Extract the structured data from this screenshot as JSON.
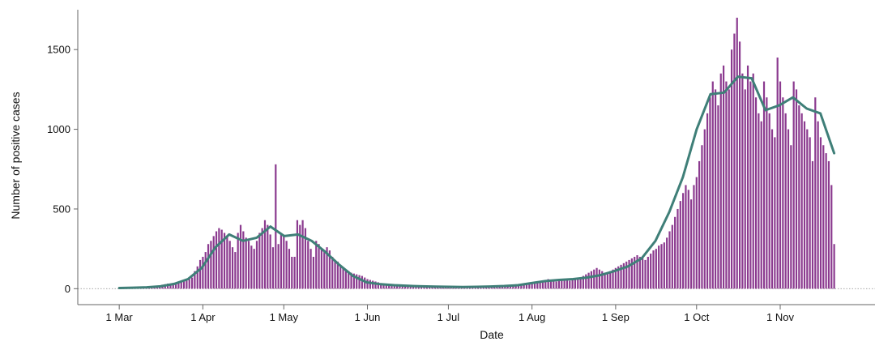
{
  "chart_data": {
    "type": "bar",
    "title": "",
    "xlabel": "Date",
    "ylabel": "Number of positive cases",
    "ylim": [
      -100,
      1750
    ],
    "grid": false,
    "legend": "none",
    "baseline": "dotted line at 0",
    "colors": {
      "bars": "#8b3a8f",
      "trend": "#3f7f78",
      "axis": "#666666",
      "text": "#111111"
    },
    "x_ticks": [
      "1 Mar",
      "1 Apr",
      "1 May",
      "1 Jun",
      "1 Jul",
      "1 Aug",
      "1 Sep",
      "1 Oct",
      "1 Nov"
    ],
    "y_ticks": [
      "0",
      "500",
      "1000",
      "1500"
    ],
    "date_range": [
      "2020-03-01",
      "2020-11-23"
    ],
    "series": [
      {
        "type": "bar",
        "values": [
          2,
          2,
          2,
          3,
          3,
          3,
          4,
          4,
          5,
          5,
          6,
          8,
          10,
          12,
          15,
          20,
          25,
          28,
          32,
          30,
          35,
          38,
          36,
          40,
          45,
          50,
          60,
          70,
          110,
          140,
          180,
          200,
          230,
          280,
          300,
          330,
          360,
          380,
          370,
          350,
          330,
          300,
          260,
          230,
          350,
          400,
          360,
          320,
          300,
          270,
          250,
          300,
          350,
          380,
          430,
          400,
          340,
          260,
          780,
          280,
          350,
          330,
          300,
          250,
          200,
          200,
          430,
          400,
          430,
          380,
          300,
          250,
          200,
          300,
          280,
          250,
          230,
          260,
          240,
          200,
          180,
          170,
          150,
          130,
          120,
          110,
          100,
          95,
          90,
          85,
          80,
          70,
          60,
          55,
          50,
          45,
          40,
          35,
          30,
          30,
          28,
          25,
          22,
          20,
          18,
          18,
          20,
          22,
          20,
          18,
          16,
          15,
          14,
          14,
          13,
          12,
          12,
          11,
          10,
          10,
          10,
          9,
          9,
          9,
          8,
          8,
          8,
          8,
          9,
          9,
          8,
          8,
          8,
          8,
          9,
          9,
          10,
          10,
          11,
          12,
          12,
          12,
          13,
          14,
          15,
          15,
          16,
          17,
          18,
          20,
          22,
          25,
          28,
          32,
          36,
          40,
          45,
          50,
          55,
          60,
          55,
          50,
          45,
          50,
          55,
          60,
          55,
          50,
          55,
          60,
          65,
          70,
          80,
          90,
          100,
          110,
          120,
          130,
          120,
          110,
          100,
          100,
          110,
          120,
          130,
          140,
          150,
          160,
          170,
          180,
          190,
          200,
          210,
          200,
          190,
          180,
          200,
          220,
          240,
          250,
          270,
          280,
          290,
          320,
          360,
          400,
          450,
          500,
          550,
          600,
          650,
          620,
          560,
          650,
          700,
          800,
          900,
          1000,
          1100,
          1200,
          1300,
          1250,
          1150,
          1350,
          1400,
          1300,
          1250,
          1500,
          1600,
          1700,
          1550,
          1350,
          1250,
          1400,
          1300,
          1350,
          1200,
          1100,
          1050,
          1300,
          1200,
          1100,
          1000,
          950,
          1450,
          1300,
          1200,
          1100,
          1000,
          900,
          1300,
          1250,
          1150,
          1100,
          1050,
          1000,
          950,
          800,
          1200,
          1050,
          950,
          900,
          850,
          800,
          650,
          280
        ]
      },
      {
        "type": "line",
        "values": [
          4,
          6,
          9,
          15,
          30,
          60,
          130,
          260,
          340,
          300,
          320,
          390,
          330,
          340,
          300,
          230,
          150,
          80,
          40,
          28,
          22,
          18,
          15,
          13,
          12,
          11,
          12,
          14,
          17,
          22,
          35,
          48,
          55,
          60,
          70,
          85,
          110,
          140,
          190,
          300,
          480,
          700,
          1000,
          1220,
          1230,
          1330,
          1320,
          1120,
          1150,
          1200,
          1130,
          1100,
          850
        ]
      }
    ]
  }
}
